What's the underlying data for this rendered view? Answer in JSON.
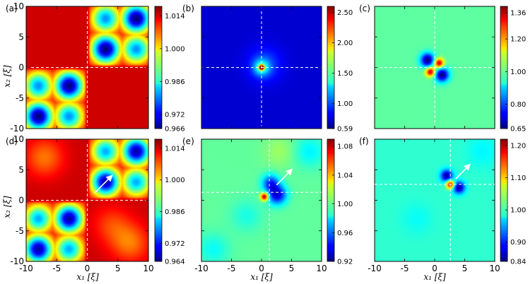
{
  "figure": {
    "xlabel": "x₁ [ξ]",
    "ylabel": "x₂ [ξ]"
  },
  "chart_data": [
    {
      "type": "heatmap",
      "label": "(a)",
      "colormap": "jet",
      "xlim": [
        -10,
        10
      ],
      "ylim": [
        -10,
        10
      ],
      "xticks": [],
      "yticks": [
        "-10",
        "-5",
        "0",
        "5",
        "10"
      ],
      "colorbar": {
        "min": 0.966,
        "max": 1.018,
        "ticks": [
          "1.014",
          "1.000",
          "0.986",
          "0.972",
          "0.966"
        ],
        "tick_values": [
          1.014,
          1.0,
          0.986,
          0.972,
          0.966
        ]
      },
      "field": {
        "kind": "checker",
        "background": 1.014,
        "crossing": [
          0,
          0
        ],
        "spots": [
          {
            "x": -8,
            "y": -3,
            "v": 0.98
          },
          {
            "x": -3,
            "y": -3,
            "v": 0.966
          },
          {
            "x": -8,
            "y": -8,
            "v": 0.966
          },
          {
            "x": -3,
            "y": -8,
            "v": 0.98
          },
          {
            "x": 3,
            "y": 8,
            "v": 0.98
          },
          {
            "x": 8,
            "y": 8,
            "v": 0.966
          },
          {
            "x": 3,
            "y": 3,
            "v": 0.966
          },
          {
            "x": 8,
            "y": 3,
            "v": 0.98
          }
        ]
      },
      "guides": {
        "x": 0,
        "y": 0
      },
      "arrow": null
    },
    {
      "type": "heatmap",
      "label": "(b)",
      "colormap": "jet",
      "xlim": [
        -10,
        10
      ],
      "ylim": [
        -10,
        10
      ],
      "xticks": [],
      "yticks": [],
      "colorbar": {
        "min": 0.59,
        "max": 2.6,
        "ticks": [
          "2.50",
          "2.00",
          "1.50",
          "1.00",
          "0.59"
        ],
        "tick_values": [
          2.5,
          2.0,
          1.5,
          1.0,
          0.59
        ]
      },
      "field": {
        "kind": "blobs",
        "background": 0.75,
        "blobs": [
          {
            "x": 0,
            "y": 0,
            "a": 1.85,
            "s": 0.28
          },
          {
            "x": 0,
            "y": 0,
            "a": 0.55,
            "s": 0.9
          },
          {
            "x": 0.5,
            "y": 0.5,
            "a": 0.25,
            "s": 2.0
          }
        ]
      },
      "guides": {
        "x": 0,
        "y": 0
      },
      "arrow": null
    },
    {
      "type": "heatmap",
      "label": "(c)",
      "colormap": "jet",
      "xlim": [
        -10,
        10
      ],
      "ylim": [
        -10,
        10
      ],
      "xticks": [],
      "yticks": [],
      "colorbar": {
        "min": 0.65,
        "max": 1.4,
        "ticks": [
          "1.36",
          "1.20",
          "1.00",
          "0.80",
          "0.65"
        ],
        "tick_values": [
          1.36,
          1.2,
          1.0,
          0.8,
          0.65
        ]
      },
      "field": {
        "kind": "blobs",
        "background": 1.0,
        "blobs": [
          {
            "x": 0.7,
            "y": 0.7,
            "a": 0.36,
            "s": 0.55
          },
          {
            "x": -0.7,
            "y": -0.7,
            "a": 0.36,
            "s": 0.55
          },
          {
            "x": -1.2,
            "y": 1.2,
            "a": -0.35,
            "s": 0.8
          },
          {
            "x": 1.2,
            "y": -1.2,
            "a": -0.35,
            "s": 0.8
          }
        ]
      },
      "guides": {
        "x": 0,
        "y": 0
      },
      "arrow": null
    },
    {
      "type": "heatmap",
      "label": "(d)",
      "colormap": "jet",
      "xlim": [
        -10,
        10
      ],
      "ylim": [
        -10,
        10
      ],
      "xticks": [
        "-10",
        "-5",
        "0",
        "5",
        "10"
      ],
      "yticks": [
        "-10",
        "-5",
        "0",
        "5",
        "10"
      ],
      "colorbar": {
        "min": 0.964,
        "max": 1.018,
        "ticks": [
          "1.014",
          "1.000",
          "0.986",
          "0.972",
          "0.964"
        ],
        "tick_values": [
          1.014,
          1.0,
          0.986,
          0.972,
          0.964
        ]
      },
      "field": {
        "kind": "checker",
        "background": 1.014,
        "crossing": [
          0,
          0
        ],
        "spots": [
          {
            "x": -8,
            "y": -3,
            "v": 0.98
          },
          {
            "x": -3,
            "y": -3,
            "v": 0.966
          },
          {
            "x": -8,
            "y": -8,
            "v": 0.966
          },
          {
            "x": -3,
            "y": -8,
            "v": 0.98
          },
          {
            "x": 3,
            "y": 8,
            "v": 0.98
          },
          {
            "x": 8,
            "y": 8,
            "v": 0.966
          },
          {
            "x": 3,
            "y": 3,
            "v": 0.966
          },
          {
            "x": 8,
            "y": 3,
            "v": 0.98
          }
        ],
        "faint": [
          {
            "x": -7,
            "y": 7,
            "v": 1.005
          },
          {
            "x": 7,
            "y": -7,
            "v": 1.005
          },
          {
            "x": 4,
            "y": -4,
            "v": 1.008
          }
        ]
      },
      "guides": {
        "x": 0,
        "y": 0
      },
      "arrow": {
        "from": [
          1.2,
          1.2
        ],
        "to": [
          3.8,
          3.8
        ]
      }
    },
    {
      "type": "heatmap",
      "label": "(e)",
      "colormap": "jet",
      "xlim": [
        -10,
        10
      ],
      "ylim": [
        -10,
        10
      ],
      "xticks": [
        "-10",
        "-5",
        "0",
        "5",
        "10"
      ],
      "yticks": [],
      "colorbar": {
        "min": 0.92,
        "max": 1.09,
        "ticks": [
          "1.08",
          "1.04",
          "1.00",
          "0.96",
          "0.92"
        ],
        "tick_values": [
          1.08,
          1.04,
          1.0,
          0.96,
          0.92
        ]
      },
      "field": {
        "kind": "blobs",
        "background": 1.0,
        "blobs": [
          {
            "x": 0.5,
            "y": 0.6,
            "a": 0.09,
            "s": 0.45
          },
          {
            "x": 2.6,
            "y": 0.9,
            "a": -0.065,
            "s": 1.1
          },
          {
            "x": 1.5,
            "y": 2.8,
            "a": -0.05,
            "s": 1.0
          },
          {
            "x": 8,
            "y": 8,
            "a": -0.018,
            "s": 1.8
          },
          {
            "x": 3,
            "y": 8,
            "a": 0.01,
            "s": 1.8
          },
          {
            "x": -8,
            "y": -8,
            "a": -0.015,
            "s": 1.8
          },
          {
            "x": -2.5,
            "y": -2.5,
            "a": -0.012,
            "s": 1.8
          }
        ]
      },
      "guides": {
        "x": 1.3,
        "y": 1.3
      },
      "arrow": {
        "from": [
          2.5,
          2.5
        ],
        "to": [
          4.8,
          4.8
        ]
      }
    },
    {
      "type": "heatmap",
      "label": "(f)",
      "colormap": "jet",
      "xlim": [
        -10,
        10
      ],
      "ylim": [
        -10,
        10
      ],
      "xticks": [
        "-10",
        "-5",
        "0",
        "5",
        "10"
      ],
      "yticks": [],
      "colorbar": {
        "min": 0.84,
        "max": 1.22,
        "ticks": [
          "1.20",
          "1.10",
          "1.00",
          "0.90",
          "0.84"
        ],
        "tick_values": [
          1.2,
          1.1,
          1.0,
          0.9,
          0.84
        ]
      },
      "field": {
        "kind": "blobs",
        "background": 1.0,
        "blobs": [
          {
            "x": 2.6,
            "y": 2.6,
            "a": 0.2,
            "s": 0.5
          },
          {
            "x": 2.0,
            "y": 4.0,
            "a": -0.15,
            "s": 0.7
          },
          {
            "x": 4.0,
            "y": 2.1,
            "a": -0.15,
            "s": 0.7
          },
          {
            "x": 8,
            "y": 8,
            "a": -0.02,
            "s": 1.8
          },
          {
            "x": -3,
            "y": -3,
            "a": -0.015,
            "s": 1.8
          }
        ]
      },
      "guides": {
        "x": 2.6,
        "y": 2.6
      },
      "arrow": {
        "from": [
          3.5,
          3.5
        ],
        "to": [
          5.6,
          5.6
        ]
      }
    }
  ]
}
